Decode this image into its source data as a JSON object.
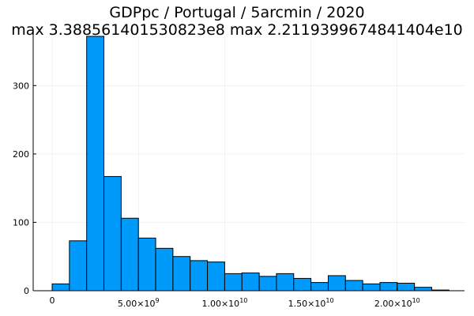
{
  "chart_data": {
    "type": "bar",
    "title": "GDPpc / Portugal / 5arcmin / 2020",
    "subtitle": "max 3.388561401530823e8  max 2.2119399674841404e10",
    "xlabel": "",
    "ylabel": "",
    "bin_width": 1000000000,
    "x_start": 0,
    "values": [
      10,
      73,
      372,
      167,
      106,
      77,
      62,
      50,
      44,
      42,
      25,
      26,
      21,
      25,
      18,
      12,
      22,
      15,
      10,
      12,
      11,
      5,
      1
    ],
    "xlim": [
      -1100000000,
      23900000000
    ],
    "ylim": [
      0,
      372
    ],
    "x_ticks": [
      {
        "value": 0,
        "label": "0"
      },
      {
        "value": 5000000000,
        "mantissa": "5.00×10",
        "exp": "9"
      },
      {
        "value": 10000000000,
        "mantissa": "1.00×10",
        "exp": "10"
      },
      {
        "value": 15000000000,
        "mantissa": "1.50×10",
        "exp": "10"
      },
      {
        "value": 20000000000,
        "mantissa": "2.00×10",
        "exp": "10"
      }
    ],
    "y_ticks": [
      {
        "value": 0,
        "label": "0"
      },
      {
        "value": 100,
        "label": "100"
      },
      {
        "value": 200,
        "label": "200"
      },
      {
        "value": 300,
        "label": "300"
      }
    ],
    "grid": true,
    "bar_color": "#009AFA",
    "legend": "none"
  }
}
